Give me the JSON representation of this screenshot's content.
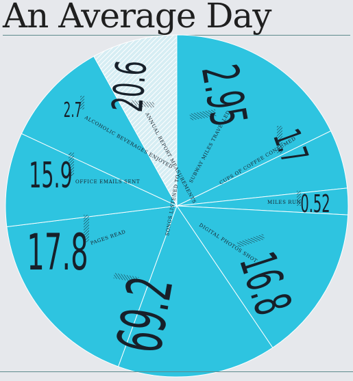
{
  "title": "An Average Day",
  "chart_data": {
    "type": "pie",
    "title": "An Average Day",
    "slices": [
      {
        "label": "SUBWAY MILES TRAVELLED",
        "value": "2.95"
      },
      {
        "label": "CUPS OF COFFEE CONSUMED",
        "value": "1.7"
      },
      {
        "label": "MILES RUN",
        "value": "0.52"
      },
      {
        "label": "DIGITAL PHOTOS SHOT",
        "value": "16.8"
      },
      {
        "label": "SONGS LISTENED TO",
        "value": "69.2"
      },
      {
        "label": "PAGES READ",
        "value": "17.8"
      },
      {
        "label": "OFFICE EMAILS SENT",
        "value": "15.9"
      },
      {
        "label": "ALCOHOLIC BEVERAGES ENJOYED",
        "value": "2.7"
      },
      {
        "label": "ANNUAL REPORT MEASUREMENTS",
        "value": "20.6"
      }
    ],
    "colors": {
      "slice": "#2ec4e0",
      "highlight_slice": "#c9e6ee",
      "divider": "#ffffff",
      "text": "#17202a"
    }
  }
}
